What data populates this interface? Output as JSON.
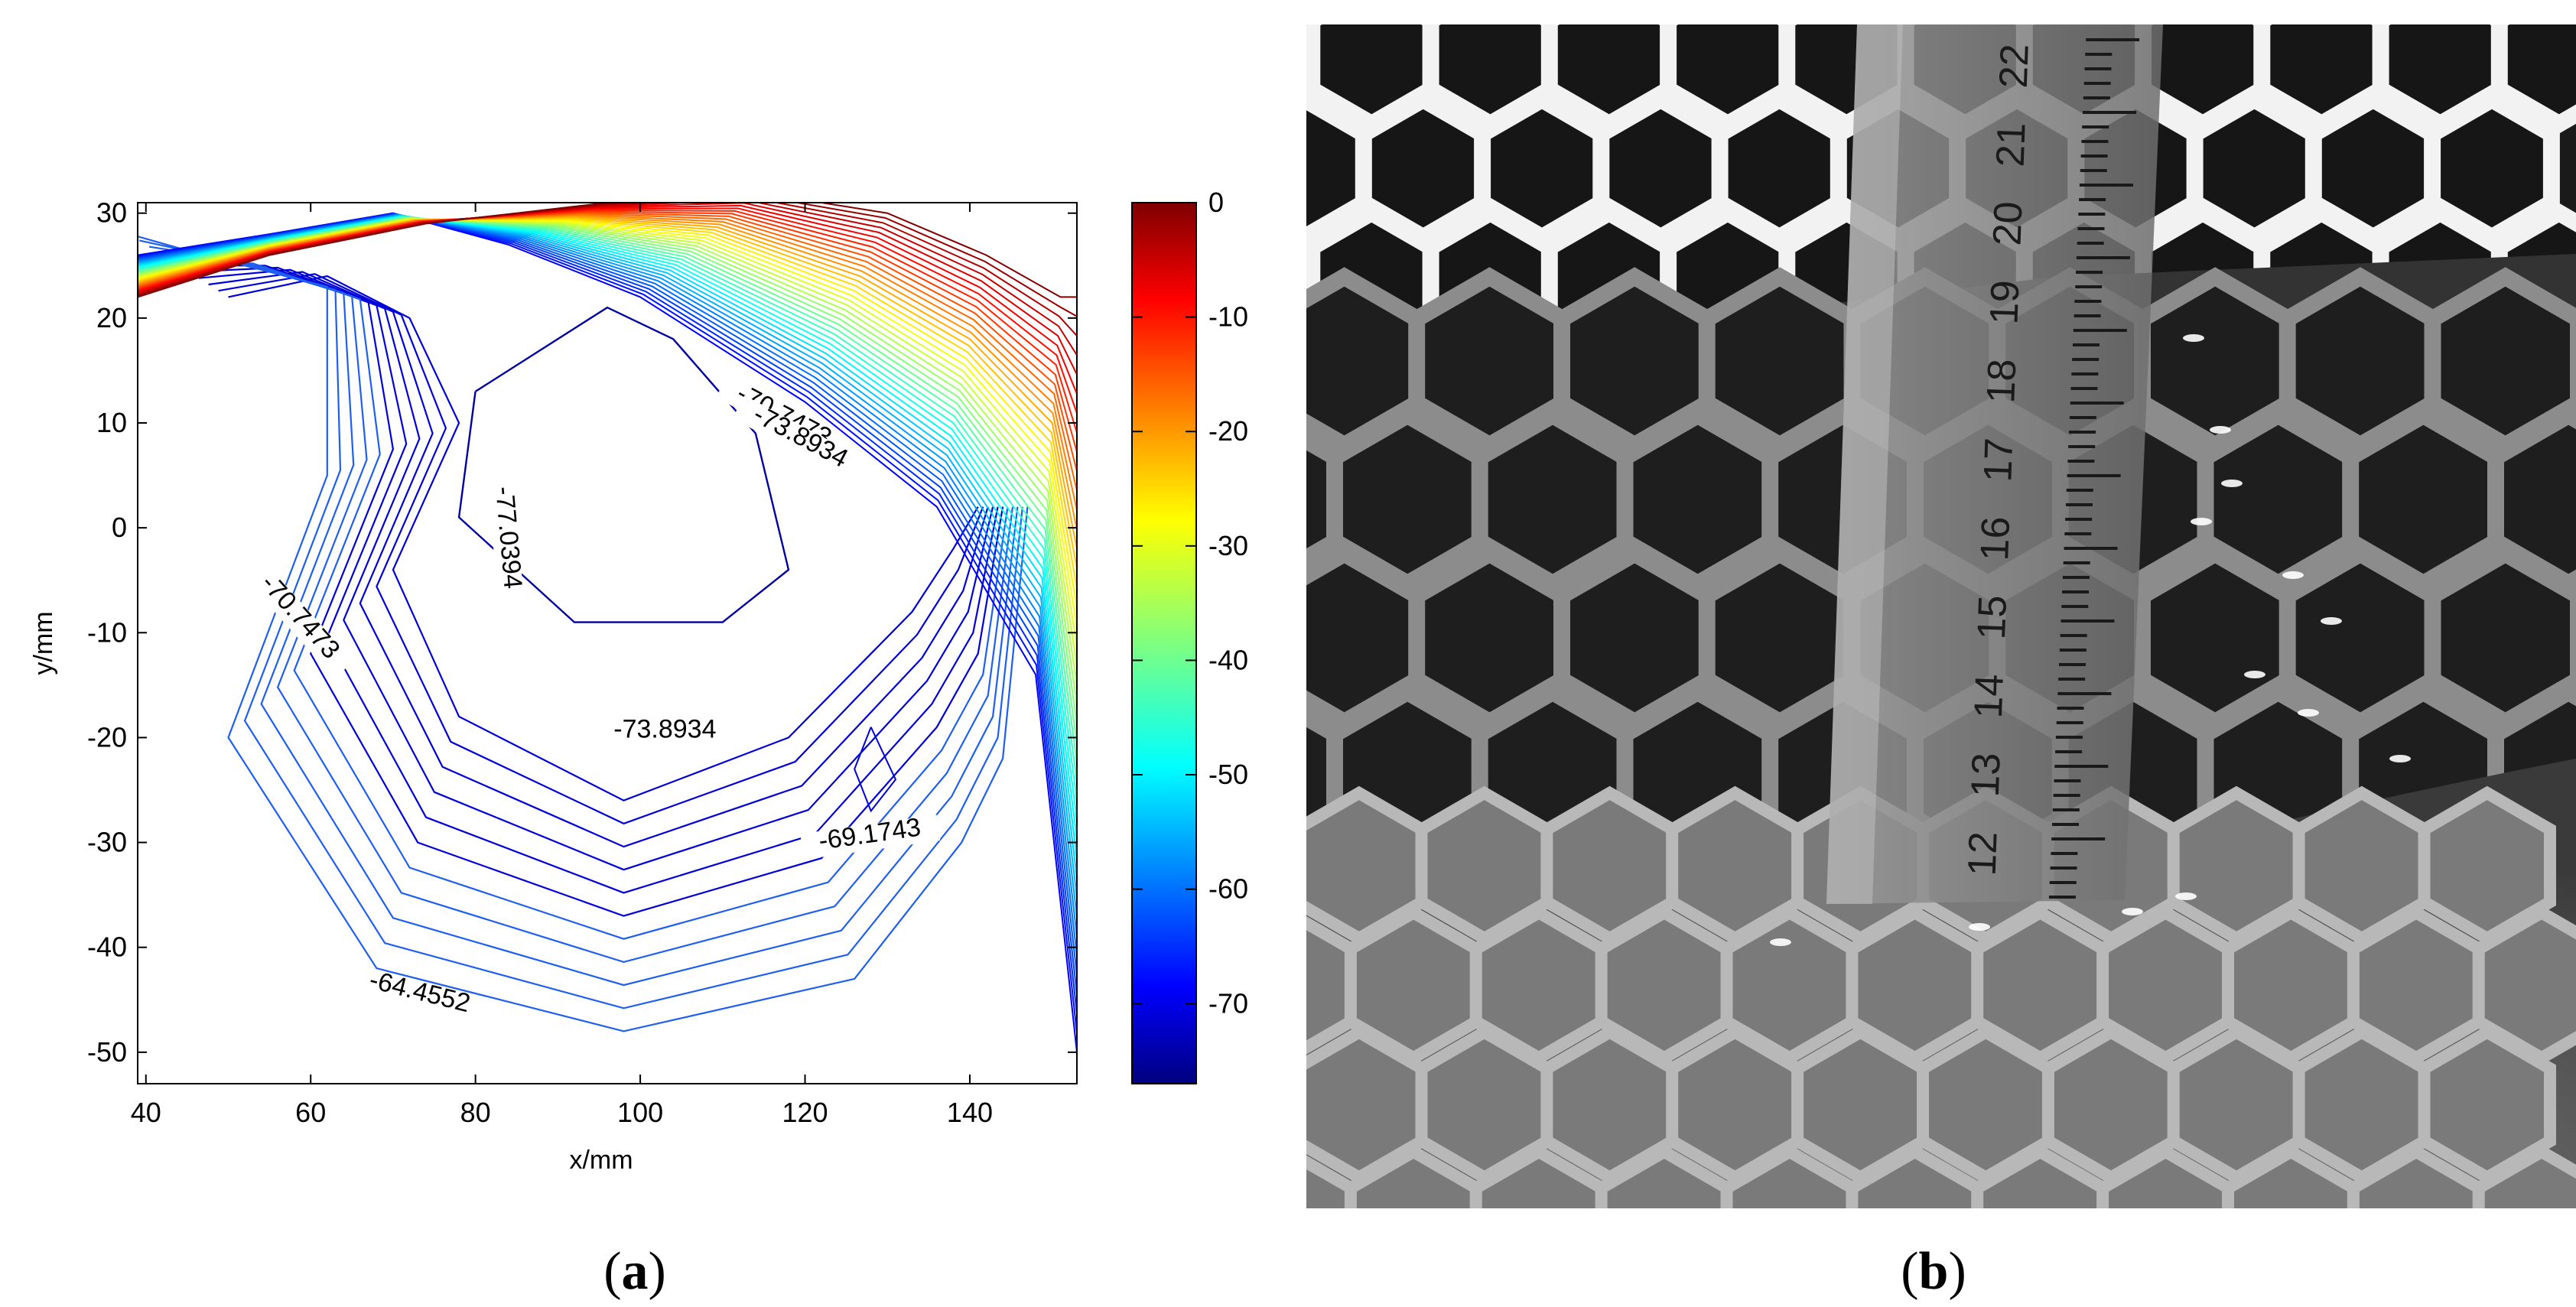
{
  "panels": [
    {
      "label": "a"
    },
    {
      "label": "b"
    }
  ],
  "chart_data": {
    "type": "contour",
    "xlabel": "x/mm",
    "ylabel": "y/mm",
    "xlim": [
      39,
      153
    ],
    "ylim": [
      -53,
      31
    ],
    "xticks": [
      40,
      60,
      80,
      100,
      120,
      140
    ],
    "yticks": [
      30,
      20,
      10,
      0,
      -10,
      -20,
      -30,
      -40,
      -50
    ],
    "colorbar": {
      "colormap": "jet",
      "range": [
        -77,
        0
      ],
      "ticks": [
        0,
        -10,
        -20,
        -30,
        -40,
        -50,
        -60,
        -70
      ]
    },
    "contour_labels": [
      {
        "text": "-77.0394",
        "x": 83,
        "y": -1,
        "angle": 85
      },
      {
        "text": "-70.7473",
        "x": 58,
        "y": -9,
        "angle": 48
      },
      {
        "text": "-73.8934",
        "x": 103,
        "y": -20,
        "angle": 0
      },
      {
        "text": "-69.1743",
        "x": 128,
        "y": -30,
        "angle": -8
      },
      {
        "text": "-64.4552",
        "x": 73,
        "y": -45,
        "angle": 14
      },
      {
        "text": "-70.7473",
        "x": 117,
        "y": 10,
        "angle": 28
      },
      {
        "text": "-73.8934",
        "x": 119,
        "y": 8,
        "angle": 28
      }
    ]
  },
  "photo": {
    "ruler_numbers": [
      "22",
      "21",
      "20",
      "19",
      "18",
      "17",
      "16",
      "15",
      "14",
      "13",
      "12"
    ]
  }
}
